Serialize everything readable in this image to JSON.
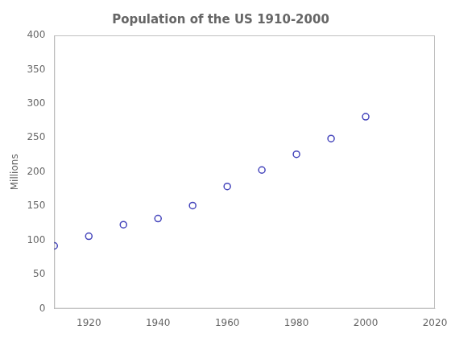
{
  "chart_data": {
    "type": "scatter",
    "title": "Population of the US 1910-2000",
    "ylabel": "Millions",
    "x": [
      1910,
      1920,
      1930,
      1940,
      1950,
      1960,
      1970,
      1980,
      1990,
      2000
    ],
    "values": [
      92,
      106,
      123,
      132,
      151,
      179,
      203,
      226,
      249,
      281
    ],
    "color": "#4444bb",
    "marker": "open_circle",
    "xlim": [
      1910,
      2020
    ],
    "ylim": [
      0,
      400
    ],
    "xticks": [
      1920,
      1940,
      1960,
      1980,
      2000,
      2020
    ],
    "yticks": [
      0,
      50,
      100,
      150,
      200,
      250,
      300,
      350,
      400
    ],
    "grid": false
  }
}
